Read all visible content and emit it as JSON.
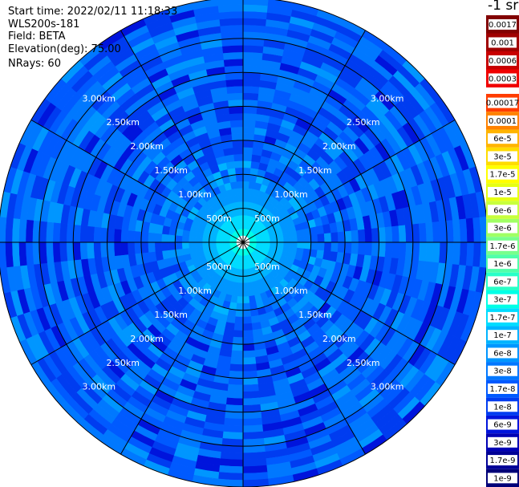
{
  "header": {
    "start_time": "Start time: 2022/02/11 11:18:33",
    "instrument": "WLS200s-181",
    "field": "Field: BETA",
    "elevation": "Elevation(deg): 75.00",
    "nrays": "NRays: 60"
  },
  "colorbar": {
    "unit_title": "-1 sr",
    "upper_labels": [
      "0.0017",
      "0.001",
      "0.0006",
      "0.0003"
    ],
    "lower_labels": [
      "0.00017",
      "0.0001",
      "6e-5",
      "3e-5",
      "1.7e-5",
      "1e-5",
      "6e-6",
      "3e-6",
      "1.7e-6",
      "1e-6",
      "6e-7",
      "3e-7",
      "1.7e-7",
      "1e-7",
      "6e-8",
      "3e-8",
      "1.7e-8",
      "1e-8",
      "6e-9",
      "3e-9",
      "1.7e-9",
      "1e-9"
    ],
    "upper_colors": [
      "#820000",
      "#a00000",
      "#c80000",
      "#f00000"
    ],
    "lower_colors": [
      "#ff3c00",
      "#ff8200",
      "#ffb400",
      "#ffdc00",
      "#ffff00",
      "#e6ff14",
      "#c8ff3c",
      "#a0ff64",
      "#78ff8c",
      "#50ffaa",
      "#28ffc8",
      "#00ffe6",
      "#00dcff",
      "#00b4ff",
      "#0096ff",
      "#0078ff",
      "#005aff",
      "#003cf0",
      "#0014dc",
      "#0000b4",
      "#000096",
      "#000078"
    ],
    "label_box_color": "#ffffff"
  },
  "chart_data": {
    "type": "heatmap",
    "subtype": "polar-ppi",
    "field": "BETA",
    "elevation_deg": 75.0,
    "n_rays": 60,
    "azimuth_step_deg": 6,
    "range_km_max": 3.6,
    "range_rings_km": [
      0.5,
      1.0,
      1.5,
      2.0,
      2.5,
      3.0
    ],
    "ring_labels": [
      "500m",
      "1.00km",
      "1.50km",
      "2.00km",
      "2.50km",
      "3.00km"
    ],
    "spokes_deg": [
      0,
      30,
      60,
      90,
      120,
      150,
      180,
      210,
      240,
      270,
      300,
      330
    ],
    "radial_profile": [
      {
        "range_km": 0.1,
        "value": 3e-07
      },
      {
        "range_km": 0.3,
        "value": 1.7e-07
      },
      {
        "range_km": 0.5,
        "value": 1e-07
      },
      {
        "range_km": 0.7,
        "value": 6e-08
      },
      {
        "range_km": 1.0,
        "value": 3e-08
      },
      {
        "range_km": 1.5,
        "value": 1.7e-08
      },
      {
        "range_km": 2.0,
        "value": 1.7e-08
      },
      {
        "range_km": 2.5,
        "value": 1.7e-08
      },
      {
        "range_km": 3.0,
        "value": 1.7e-08
      },
      {
        "range_km": 3.5,
        "value": 1.7e-08
      }
    ],
    "center_fill": "#ffffff",
    "grid": true
  }
}
